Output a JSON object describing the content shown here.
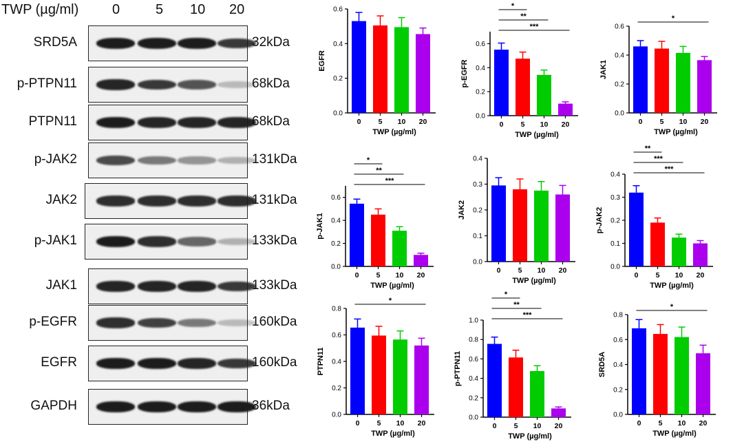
{
  "blot": {
    "header_label": "TWP (µg/ml)",
    "doses": [
      "0",
      "5",
      "10",
      "20"
    ],
    "rows": [
      {
        "label": "SRD5A",
        "size": "32kDa",
        "intensity": [
          1.0,
          1.0,
          1.0,
          0.85
        ]
      },
      {
        "label": "p-PTPN11",
        "size": "68kDa",
        "intensity": [
          0.95,
          0.85,
          0.7,
          0.15
        ]
      },
      {
        "label": "PTPN11",
        "size": "68kDa",
        "intensity": [
          1.0,
          0.95,
          0.95,
          0.95
        ]
      },
      {
        "label": "p-JAK2",
        "size": "131kDa",
        "intensity": [
          0.75,
          0.5,
          0.35,
          0.2
        ]
      },
      {
        "label": "JAK2",
        "size": "131kDa",
        "intensity": [
          0.9,
          0.9,
          0.9,
          0.9
        ]
      },
      {
        "label": "p-JAK1",
        "size": "133kDa",
        "intensity": [
          1.0,
          0.9,
          0.6,
          0.2
        ]
      },
      {
        "label": "JAK1",
        "size": "133kDa",
        "intensity": [
          0.95,
          0.95,
          0.95,
          0.85
        ]
      },
      {
        "label": "p-EGFR",
        "size": "160kDa",
        "intensity": [
          0.9,
          0.8,
          0.5,
          0.15
        ]
      },
      {
        "label": "EGFR",
        "size": "160kDa",
        "intensity": [
          1.0,
          1.0,
          0.95,
          0.85
        ]
      },
      {
        "label": "GAPDH",
        "size": "36kDa",
        "intensity": [
          1.0,
          1.0,
          1.0,
          1.0
        ]
      }
    ]
  },
  "colors": [
    "#0000ff",
    "#ff0000",
    "#00cc00",
    "#aa00ee"
  ],
  "chart_data": [
    {
      "type": "bar",
      "categories": [
        "0",
        "5",
        "10",
        "20"
      ],
      "values": [
        0.53,
        0.505,
        0.495,
        0.455
      ],
      "errors": [
        0.05,
        0.055,
        0.055,
        0.035
      ],
      "xlabel": "TWP (µg/ml)",
      "ylabel": "EGFR",
      "ylim": [
        0,
        0.6
      ],
      "yticks": [
        "0.0",
        "0.2",
        "0.4",
        "0.6"
      ],
      "sig": []
    },
    {
      "type": "bar",
      "categories": [
        "0",
        "5",
        "10",
        "20"
      ],
      "values": [
        0.55,
        0.475,
        0.34,
        0.1
      ],
      "errors": [
        0.055,
        0.055,
        0.04,
        0.015
      ],
      "xlabel": "TWP (µg/ml)",
      "ylabel": "p-EGFR",
      "ylim": [
        0,
        0.7
      ],
      "yticks": [
        "0.0",
        "0.2",
        "0.4",
        "0.6"
      ],
      "sig": [
        {
          "to": 1,
          "label": "*"
        },
        {
          "to": 2,
          "label": "**"
        },
        {
          "to": 3,
          "label": "***"
        }
      ]
    },
    {
      "type": "bar",
      "categories": [
        "0",
        "5",
        "10",
        "20"
      ],
      "values": [
        0.46,
        0.445,
        0.415,
        0.365
      ],
      "errors": [
        0.04,
        0.05,
        0.045,
        0.025
      ],
      "xlabel": "TWP (µg/ml)",
      "ylabel": "JAK1",
      "ylim": [
        0,
        0.6
      ],
      "yticks": [
        "0.0",
        "0.2",
        "0.4",
        "0.6"
      ],
      "sig": [
        {
          "to": 3,
          "label": "*"
        }
      ]
    },
    {
      "type": "bar",
      "categories": [
        "0",
        "5",
        "10",
        "20"
      ],
      "values": [
        0.545,
        0.45,
        0.31,
        0.1
      ],
      "errors": [
        0.04,
        0.05,
        0.035,
        0.015
      ],
      "xlabel": "TWP (µg/ml)",
      "ylabel": "p-JAK1",
      "ylim": [
        0,
        0.7
      ],
      "yticks": [
        "0.0",
        "0.2",
        "0.4",
        "0.6"
      ],
      "sig": [
        {
          "to": 1,
          "label": "*"
        },
        {
          "to": 2,
          "label": "**"
        },
        {
          "to": 3,
          "label": "***"
        }
      ]
    },
    {
      "type": "bar",
      "categories": [
        "0",
        "5",
        "10",
        "20"
      ],
      "values": [
        0.295,
        0.28,
        0.275,
        0.26
      ],
      "errors": [
        0.03,
        0.04,
        0.035,
        0.035
      ],
      "xlabel": "TWP (µg/ml)",
      "ylabel": "JAK2",
      "ylim": [
        0,
        0.4
      ],
      "yticks": [
        "0.0",
        "0.1",
        "0.2",
        "0.3",
        "0.4"
      ],
      "sig": []
    },
    {
      "type": "bar",
      "categories": [
        "0",
        "5",
        "10",
        "20"
      ],
      "values": [
        0.32,
        0.19,
        0.125,
        0.1
      ],
      "errors": [
        0.03,
        0.02,
        0.015,
        0.012
      ],
      "xlabel": "TWP (µg/ml)",
      "ylabel": "p-JAK2",
      "ylim": [
        0,
        0.4
      ],
      "yticks": [
        "0.0",
        "0.1",
        "0.2",
        "0.3",
        "0.4"
      ],
      "sig": [
        {
          "to": 1,
          "label": "**"
        },
        {
          "to": 2,
          "label": "***"
        },
        {
          "to": 3,
          "label": "***"
        }
      ]
    },
    {
      "type": "bar",
      "categories": [
        "0",
        "5",
        "10",
        "20"
      ],
      "values": [
        0.655,
        0.595,
        0.565,
        0.52
      ],
      "errors": [
        0.065,
        0.07,
        0.065,
        0.055
      ],
      "xlabel": "TWP (µg/ml)",
      "ylabel": "PTPN11",
      "ylim": [
        0,
        0.8
      ],
      "yticks": [
        "0.0",
        "0.2",
        "0.4",
        "0.6",
        "0.8"
      ],
      "sig": [
        {
          "to": 3,
          "label": "*"
        }
      ]
    },
    {
      "type": "bar",
      "categories": [
        "0",
        "5",
        "10",
        "20"
      ],
      "values": [
        0.755,
        0.615,
        0.475,
        0.09
      ],
      "errors": [
        0.07,
        0.075,
        0.055,
        0.015
      ],
      "xlabel": "TWP (µg/ml)",
      "ylabel": "p-PTPN11",
      "ylim": [
        0,
        1.0
      ],
      "yticks": [
        "0.0",
        "0.2",
        "0.4",
        "0.6",
        "0.8",
        "1.0"
      ],
      "sig": [
        {
          "to": 1,
          "label": "*"
        },
        {
          "to": 2,
          "label": "**"
        },
        {
          "to": 3,
          "label": "***"
        }
      ]
    },
    {
      "type": "bar",
      "categories": [
        "0",
        "5",
        "10",
        "20"
      ],
      "values": [
        0.69,
        0.645,
        0.62,
        0.49
      ],
      "errors": [
        0.07,
        0.075,
        0.08,
        0.065
      ],
      "xlabel": "TWP (µg/ml)",
      "ylabel": "SRD5A",
      "ylim": [
        0,
        0.8
      ],
      "yticks": [
        "0.0",
        "0.2",
        "0.4",
        "0.6",
        "0.8"
      ],
      "sig": [
        {
          "to": 3,
          "label": "*"
        }
      ]
    }
  ]
}
